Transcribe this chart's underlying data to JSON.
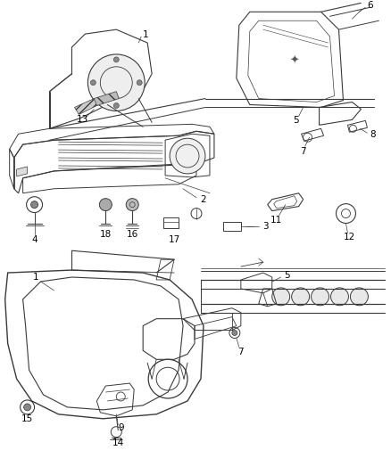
{
  "background_color": "#ffffff",
  "line_color": "#3a3a3a",
  "text_color": "#000000",
  "fig_width": 4.38,
  "fig_height": 5.33,
  "dpi": 100,
  "label_fontsize": 7.5,
  "top_diagram": {
    "y_min": 0.5,
    "y_max": 1.0
  },
  "bottom_diagram": {
    "y_min": 0.01,
    "y_max": 0.47
  }
}
